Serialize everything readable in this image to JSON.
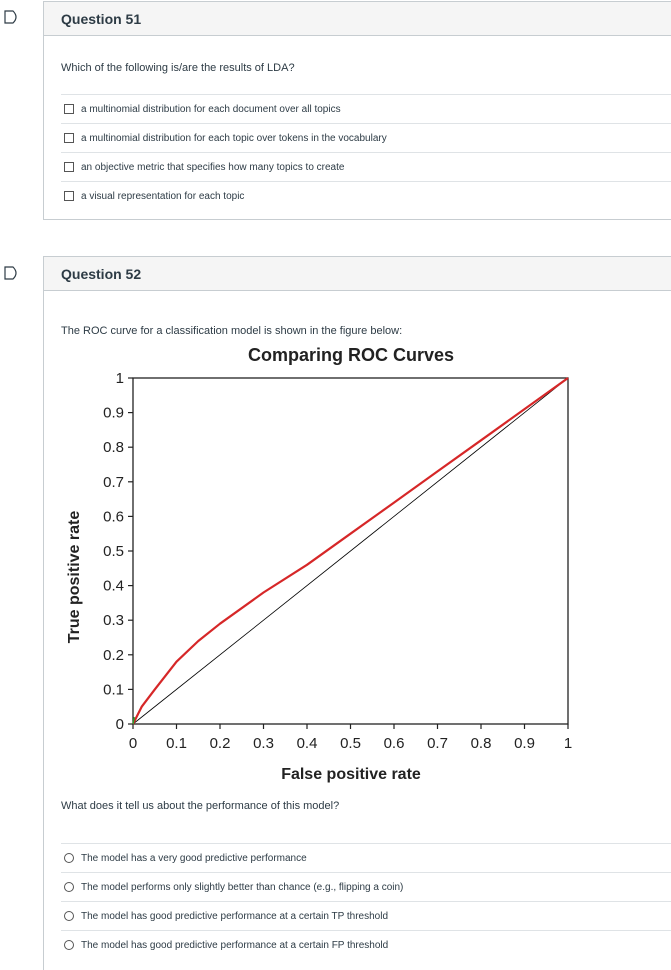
{
  "questions": [
    {
      "title": "Question 51",
      "prompt": "Which of the following is/are the results of LDA?",
      "answer_type": "checkbox",
      "answers": [
        "a multinomial distribution for each document over all topics",
        "a multinomial distribution for each topic over tokens in the vocabulary",
        "an objective metric that specifies how many topics to create",
        "a visual representation for each topic"
      ]
    },
    {
      "title": "Question 52",
      "prompt": "The ROC curve for a classification model is shown in the figure below:",
      "followup": "What does it tell us about the performance of this model?",
      "answer_type": "radio",
      "answers": [
        "The model has a very good predictive performance",
        "The model performs only slightly better than chance (e.g., flipping a coin)",
        "The model has good predictive performance at a certain TP threshold",
        "The model has good predictive performance at a certain FP threshold"
      ]
    }
  ],
  "chart_data": {
    "type": "line",
    "title": "Comparing ROC Curves",
    "xlabel": "False positive rate",
    "ylabel": "True positive rate",
    "xlim": [
      0,
      1
    ],
    "ylim": [
      0,
      1
    ],
    "xticks": [
      "0",
      "0.1",
      "0.2",
      "0.3",
      "0.4",
      "0.5",
      "0.6",
      "0.7",
      "0.8",
      "0.9",
      "1"
    ],
    "yticks": [
      "0",
      "0.1",
      "0.2",
      "0.3",
      "0.4",
      "0.5",
      "0.6",
      "0.7",
      "0.8",
      "0.9",
      "1"
    ],
    "series": [
      {
        "color": "#d62728",
        "x": [
          0,
          0.02,
          0.05,
          0.1,
          0.15,
          0.2,
          0.3,
          0.4,
          0.5,
          0.6,
          0.7,
          0.8,
          0.9,
          1.0
        ],
        "y": [
          0,
          0.05,
          0.1,
          0.18,
          0.24,
          0.29,
          0.38,
          0.46,
          0.55,
          0.64,
          0.73,
          0.82,
          0.91,
          1.0
        ]
      },
      {
        "color": "#000000",
        "x": [
          0,
          1
        ],
        "y": [
          0,
          1
        ]
      }
    ],
    "grid": false,
    "legend": "none"
  }
}
